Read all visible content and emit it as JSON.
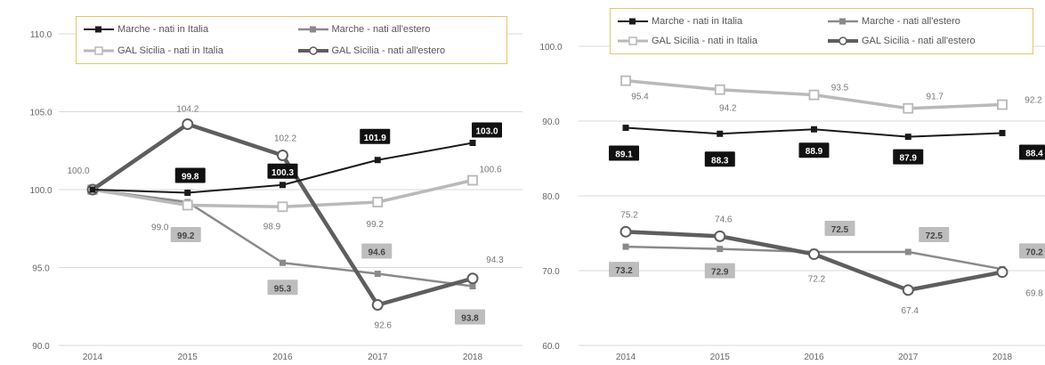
{
  "colors": {
    "marche_italia": "#1a1a1a",
    "marche_estero": "#8a8a8a",
    "gal_italia": "#b9b9b9",
    "gal_estero": "#5e5e5e",
    "legend_border": "#e9c36a"
  },
  "chart_data": [
    {
      "type": "line",
      "title": "",
      "xlabel": "",
      "ylabel": "",
      "categories": [
        "2014",
        "2015",
        "2016",
        "2017",
        "2018"
      ],
      "ylim": [
        90.0,
        110.0
      ],
      "yticks": [
        "110.0",
        "105.0",
        "100.0",
        "95.0",
        "90.0"
      ],
      "legend_position": "top",
      "grid": true,
      "series": [
        {
          "name": "Marche - nati in Italia",
          "key": "marche_italia",
          "values": [
            100.0,
            99.8,
            100.3,
            101.9,
            103.0
          ],
          "labels": [
            "",
            "99.8",
            "100.3",
            "101.9",
            "103.0"
          ],
          "label_box": "dark"
        },
        {
          "name": "Marche - nati all'estero",
          "key": "marche_estero",
          "values": [
            100.0,
            99.2,
            95.3,
            94.6,
            93.8
          ],
          "labels": [
            "",
            "99.2",
            "95.3",
            "94.6",
            "93.8"
          ],
          "label_box": "light"
        },
        {
          "name": "GAL Sicilia - nati in Italia",
          "key": "gal_italia",
          "values": [
            100.0,
            99.0,
            98.9,
            99.2,
            100.6
          ],
          "labels": [
            "100.0",
            "99.0",
            "98.9",
            "99.2",
            "100.6"
          ],
          "label_box": "none"
        },
        {
          "name": "GAL Sicilia - nati all'estero",
          "key": "gal_estero",
          "values": [
            100.0,
            104.2,
            102.2,
            92.6,
            94.3
          ],
          "labels": [
            "",
            "104.2",
            "102.2",
            "92.6",
            "94.3"
          ],
          "label_box": "none"
        }
      ]
    },
    {
      "type": "line",
      "title": "",
      "xlabel": "",
      "ylabel": "",
      "categories": [
        "2014",
        "2015",
        "2016",
        "2017",
        "2018"
      ],
      "ylim": [
        60.0,
        100.0
      ],
      "yticks": [
        "100.0",
        "90.0",
        "80.0",
        "70.0",
        "60.0"
      ],
      "legend_position": "top",
      "grid": true,
      "series": [
        {
          "name": "Marche - nati in Italia",
          "key": "marche_italia",
          "values": [
            89.1,
            88.3,
            88.9,
            87.9,
            88.4
          ],
          "labels": [
            "89.1",
            "88.3",
            "88.9",
            "87.9",
            "88.4"
          ],
          "label_box": "dark"
        },
        {
          "name": "Marche - nati all'estero",
          "key": "marche_estero",
          "values": [
            73.2,
            72.9,
            72.5,
            72.5,
            70.2
          ],
          "labels": [
            "73.2",
            "72.9",
            "72.5",
            "72.5",
            "70.2"
          ],
          "label_box": "light"
        },
        {
          "name": "GAL Sicilia - nati in Italia",
          "key": "gal_italia",
          "values": [
            95.4,
            94.2,
            93.5,
            91.7,
            92.2
          ],
          "labels": [
            "95.4",
            "94.2",
            "93.5",
            "91.7",
            "92.2"
          ],
          "label_box": "none"
        },
        {
          "name": "GAL Sicilia - nati all'estero",
          "key": "gal_estero",
          "values": [
            75.2,
            74.6,
            72.2,
            67.4,
            69.8
          ],
          "labels": [
            "75.2",
            "74.6",
            "72.2",
            "67.4",
            "69.8"
          ],
          "label_box": "none"
        }
      ]
    }
  ]
}
